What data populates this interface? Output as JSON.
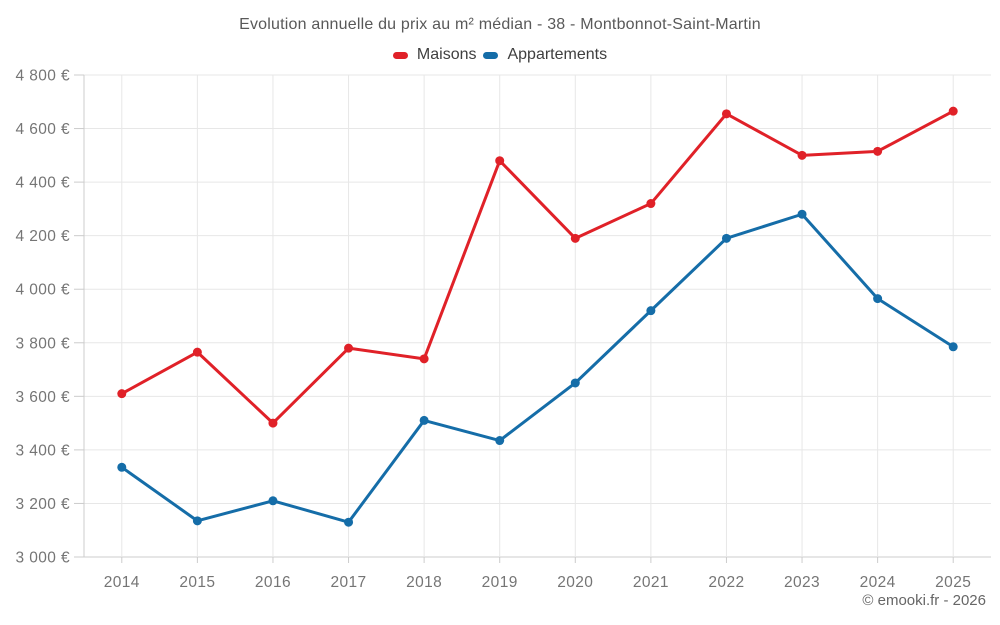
{
  "title": "Evolution annuelle du prix au m² médian - 38 - Montbonnot-Saint-Martin",
  "legend": {
    "items": [
      {
        "label": "Maisons",
        "color": "#e02128"
      },
      {
        "label": "Appartements",
        "color": "#156da8"
      }
    ]
  },
  "footer": {
    "credit": "© emooki.fr - 2026"
  },
  "axis_style": {
    "text_color": "#757575",
    "grid_color": "#e7e7e7",
    "axis_color": "#cccccc"
  },
  "chart_data": {
    "type": "line",
    "title": "Evolution annuelle du prix au m² médian - 38 - Montbonnot-Saint-Martin",
    "x": [
      2014,
      2015,
      2016,
      2017,
      2018,
      2019,
      2020,
      2021,
      2022,
      2023,
      2024,
      2025
    ],
    "series": [
      {
        "name": "Maisons",
        "color": "#e02128",
        "values": [
          3610,
          3765,
          3500,
          3780,
          3740,
          4480,
          4190,
          4320,
          4655,
          4500,
          4515,
          4665
        ]
      },
      {
        "name": "Appartements",
        "color": "#156da8",
        "values": [
          3335,
          3135,
          3210,
          3130,
          3510,
          3435,
          3650,
          3920,
          4190,
          4280,
          3965,
          3785
        ]
      }
    ],
    "ylim": [
      3000,
      4800
    ],
    "y_ticks": [
      3000,
      3200,
      3400,
      3600,
      3800,
      4000,
      4200,
      4400,
      4600,
      4800
    ],
    "y_tick_labels": [
      "3 000 €",
      "3 200 €",
      "3 400 €",
      "3 600 €",
      "3 800 €",
      "4 000 €",
      "4 200 €",
      "4 400 €",
      "4 600 €",
      "4 800 €"
    ],
    "grid": true,
    "legend_position": "top"
  }
}
